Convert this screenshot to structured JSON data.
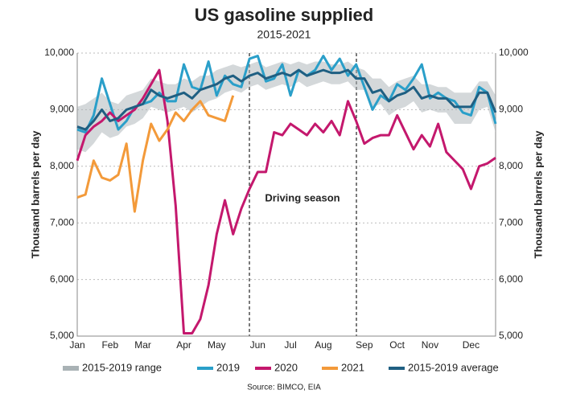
{
  "chart_data": {
    "type": "line",
    "title": "US gasoline supplied",
    "subtitle": "2015-2021",
    "y_label": "Thousand barrels per day",
    "y2_label": "Thousand barrels per day",
    "annotation": "Driving season",
    "source": "Source: BIMCO, EIA",
    "grid": true,
    "categories": [
      "Jan",
      null,
      null,
      null,
      "Feb",
      null,
      null,
      null,
      "Mar",
      null,
      null,
      null,
      null,
      "Apr",
      null,
      null,
      null,
      "May",
      null,
      null,
      null,
      null,
      "Jun",
      null,
      null,
      null,
      "Jul",
      null,
      null,
      null,
      "Aug",
      null,
      null,
      null,
      null,
      "Sep",
      null,
      null,
      null,
      "Oct",
      null,
      null,
      null,
      "Nov",
      null,
      null,
      null,
      null,
      "Dec",
      null,
      null,
      null
    ],
    "ylim": [
      5000,
      10000
    ],
    "yticks": [
      {
        "value": 5000,
        "label": "5,000"
      },
      {
        "value": 6000,
        "label": "6,000"
      },
      {
        "value": 7000,
        "label": "7,000"
      },
      {
        "value": 8000,
        "label": "8,000"
      },
      {
        "value": 9000,
        "label": "9,000"
      },
      {
        "value": 10000,
        "label": "10,000"
      }
    ],
    "y2lim": [
      5000,
      10000
    ],
    "y2ticks": [
      {
        "value": 5000,
        "label": "5,000"
      },
      {
        "value": 6000,
        "label": "6,000"
      },
      {
        "value": 7000,
        "label": "7,000"
      },
      {
        "value": 8000,
        "label": "8,000"
      },
      {
        "value": 9000,
        "label": "9,000"
      },
      {
        "value": 10000,
        "label": "10,000"
      }
    ],
    "range": {
      "name": "2015-2019 range",
      "color": "#a9b2b5",
      "low": [
        8300,
        8250,
        8400,
        8600,
        8500,
        8550,
        8700,
        8750,
        8850,
        9050,
        9000,
        8950,
        9000,
        9050,
        8950,
        9050,
        9150,
        9200,
        9300,
        9350,
        9300,
        9400,
        9450,
        9350,
        9400,
        9450,
        9400,
        9500,
        9400,
        9450,
        9500,
        9450,
        9450,
        9500,
        9350,
        9350,
        9050,
        9100,
        8900,
        9000,
        9050,
        9150,
        8950,
        9000,
        8950,
        8950,
        8750,
        8750,
        8750,
        9000,
        9050,
        8600
      ],
      "high": [
        9050,
        9100,
        9200,
        9300,
        9150,
        9100,
        9250,
        9300,
        9350,
        9550,
        9500,
        9450,
        9450,
        9550,
        9500,
        9600,
        9600,
        9700,
        9750,
        9800,
        9750,
        9800,
        9850,
        9750,
        9800,
        9850,
        9800,
        9850,
        9800,
        9850,
        9850,
        9800,
        9800,
        9850,
        9750,
        9700,
        9550,
        9550,
        9400,
        9500,
        9550,
        9600,
        9450,
        9450,
        9400,
        9400,
        9300,
        9300,
        9300,
        9500,
        9500,
        9250
      ]
    },
    "series": [
      {
        "name": "2019",
        "color": "#2a9fc9",
        "values": [
          8650,
          8600,
          8900,
          9550,
          9100,
          8650,
          8800,
          9050,
          9100,
          9150,
          9300,
          9150,
          9150,
          9800,
          9400,
          9350,
          9850,
          9250,
          9600,
          9450,
          9400,
          9900,
          9950,
          9500,
          9550,
          9800,
          9250,
          9700,
          9600,
          9700,
          9950,
          9700,
          9900,
          9600,
          9800,
          9400,
          9000,
          9250,
          9150,
          9450,
          9350,
          9550,
          9800,
          9200,
          9300,
          9200,
          9150,
          8950,
          8900,
          9400,
          9300,
          8750
        ]
      },
      {
        "name": "2020",
        "color": "#c4186d",
        "values": [
          8100,
          8550,
          8700,
          8800,
          8950,
          8800,
          8900,
          9000,
          9200,
          9450,
          9700,
          8800,
          7300,
          5050,
          5050,
          5300,
          5900,
          6800,
          7400,
          6800,
          7250,
          7600,
          7900,
          7900,
          8600,
          8550,
          8750,
          8650,
          8550,
          8750,
          8600,
          8800,
          8550,
          9150,
          8800,
          8400,
          8500,
          8550,
          8550,
          8900,
          8600,
          8300,
          8550,
          8350,
          8750,
          8250,
          8100,
          7950,
          7600,
          8000,
          8050,
          8150
        ]
      },
      {
        "name": "2021",
        "color": "#f39a3a",
        "values": [
          7450,
          7500,
          8100,
          7800,
          7750,
          7850,
          8400,
          7200,
          8100,
          8750,
          8450,
          8650,
          8950,
          8800,
          9000,
          9150,
          8900,
          8850,
          8800,
          9250,
          null,
          null,
          null,
          null,
          null,
          null,
          null,
          null,
          null,
          null,
          null,
          null,
          null,
          null,
          null,
          null,
          null,
          null,
          null,
          null,
          null,
          null,
          null,
          null,
          null,
          null,
          null,
          null,
          null,
          null,
          null,
          null
        ]
      },
      {
        "name": "2015-2019 average",
        "color": "#1f5f82",
        "values": [
          8700,
          8650,
          8800,
          9000,
          8800,
          8850,
          9000,
          9050,
          9100,
          9350,
          9250,
          9200,
          9250,
          9300,
          9200,
          9350,
          9400,
          9450,
          9550,
          9600,
          9500,
          9600,
          9650,
          9550,
          9600,
          9650,
          9600,
          9700,
          9600,
          9650,
          9700,
          9650,
          9650,
          9700,
          9550,
          9550,
          9300,
          9350,
          9150,
          9250,
          9300,
          9400,
          9200,
          9250,
          9200,
          9200,
          9050,
          9050,
          9050,
          9300,
          9300,
          8950
        ]
      }
    ]
  }
}
